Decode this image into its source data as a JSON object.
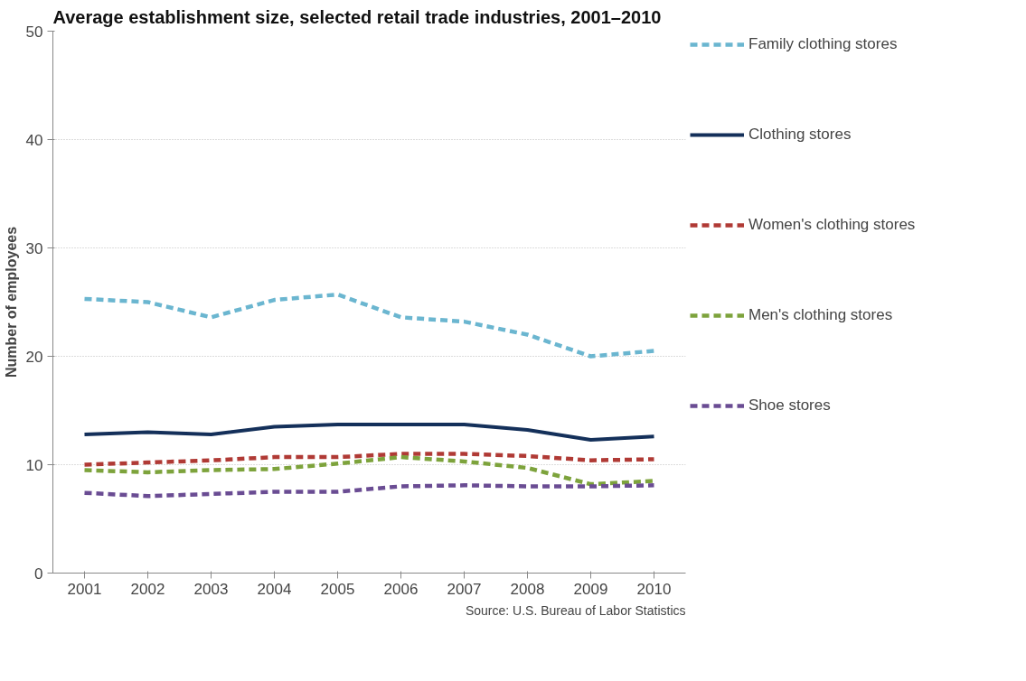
{
  "chart_data": {
    "type": "line",
    "title": "Average establishment size, selected retail trade industries, 2001–2010",
    "ylabel": "Number of employees",
    "categories": [
      "2001",
      "2002",
      "2003",
      "2004",
      "2005",
      "2006",
      "2007",
      "2008",
      "2009",
      "2010"
    ],
    "ylim": [
      0,
      50
    ],
    "yticks": [
      0,
      10,
      20,
      30,
      40,
      50
    ],
    "grid": "y",
    "legend": "right",
    "series": [
      {
        "name": "Family clothing stores",
        "color": "#6bb6d0",
        "line_style": "dashed",
        "values": [
          25.3,
          25.0,
          23.6,
          25.2,
          25.7,
          23.6,
          23.2,
          22.0,
          20.0,
          20.5
        ]
      },
      {
        "name": "Clothing stores",
        "color": "#14305a",
        "line_style": "solid",
        "values": [
          12.8,
          13.0,
          12.8,
          13.5,
          13.7,
          13.7,
          13.7,
          13.2,
          12.3,
          12.6
        ]
      },
      {
        "name": "Women's clothing stores",
        "color": "#b03a35",
        "line_style": "dashed",
        "values": [
          10.0,
          10.2,
          10.4,
          10.7,
          10.7,
          11.0,
          11.0,
          10.8,
          10.4,
          10.5
        ]
      },
      {
        "name": "Men's clothing stores",
        "color": "#7da33c",
        "line_style": "dashed",
        "values": [
          9.5,
          9.3,
          9.5,
          9.6,
          10.1,
          10.7,
          10.3,
          9.7,
          8.2,
          8.5
        ]
      },
      {
        "name": "Shoe stores",
        "color": "#6a4c93",
        "line_style": "dashed",
        "values": [
          7.4,
          7.1,
          7.3,
          7.5,
          7.5,
          8.0,
          8.1,
          8.0,
          8.0,
          8.1
        ]
      }
    ],
    "annotations": [
      "Source: U.S. Bureau of Labor Statistics"
    ]
  }
}
